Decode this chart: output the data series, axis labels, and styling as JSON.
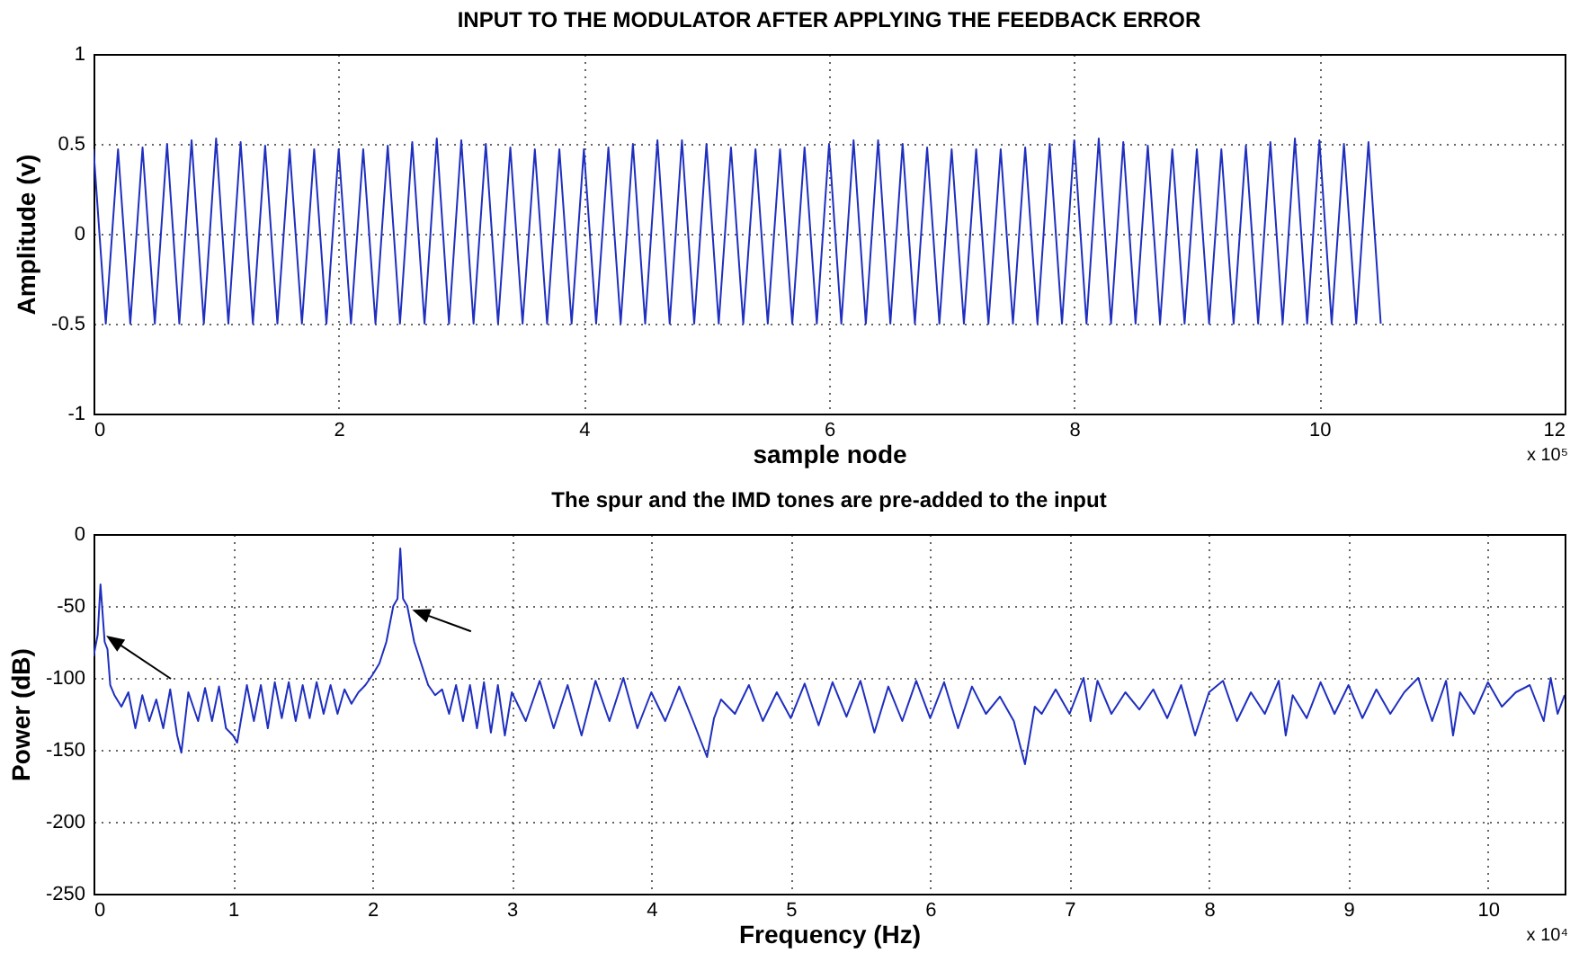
{
  "chart_data": [
    {
      "type": "line",
      "title": "INPUT TO THE MODULATOR AFTER APPLYING THE FEEDBACK ERROR",
      "xlabel": "sample node",
      "ylabel": "Amplitude (v)",
      "xlim": [
        0,
        12
      ],
      "ylim": [
        -1,
        1
      ],
      "xticks": [
        0,
        2,
        4,
        6,
        8,
        10,
        12
      ],
      "yticks": [
        -1,
        -0.5,
        0,
        0.5,
        1
      ],
      "grid": true,
      "annotations": [
        "x 10⁵"
      ],
      "series": [
        {
          "color": "#1f2fbf",
          "x": [
            0,
            0.1,
            0.2,
            0.3,
            0.4,
            0.5,
            0.6,
            0.7,
            0.8,
            0.9,
            1,
            1.1,
            1.2,
            1.3,
            1.4,
            1.5,
            1.6,
            1.7,
            1.8,
            1.9,
            2,
            2.1,
            2.2,
            2.3,
            2.4,
            2.5,
            2.6,
            2.7,
            2.8,
            2.9,
            3,
            3.1,
            3.2,
            3.3,
            3.4,
            3.5,
            3.6,
            3.7,
            3.8,
            3.9,
            4,
            4.1,
            4.2,
            4.3,
            4.4,
            4.5,
            4.6,
            4.7,
            4.8,
            4.9,
            5,
            5.1,
            5.2,
            5.3,
            5.4,
            5.5,
            5.6,
            5.7,
            5.8,
            5.9,
            6,
            6.1,
            6.2,
            6.3,
            6.4,
            6.5,
            6.6,
            6.7,
            6.8,
            6.9,
            7,
            7.1,
            7.2,
            7.3,
            7.4,
            7.5,
            7.6,
            7.7,
            7.8,
            7.9,
            8,
            8.1,
            8.2,
            8.3,
            8.4,
            8.5,
            8.6,
            8.7,
            8.8,
            8.9,
            9,
            9.1,
            9.2,
            9.3,
            9.4,
            9.5,
            9.6,
            9.7,
            9.8,
            9.9,
            10,
            10.1,
            10.2,
            10.3,
            10.4,
            10.5
          ],
          "values": [
            0.47,
            -0.5,
            0.47,
            -0.5,
            0.48,
            -0.5,
            0.5,
            -0.5,
            0.52,
            -0.5,
            0.53,
            -0.5,
            0.51,
            -0.5,
            0.49,
            -0.5,
            0.47,
            -0.5,
            0.47,
            -0.5,
            0.47,
            -0.5,
            0.47,
            -0.5,
            0.49,
            -0.5,
            0.51,
            -0.5,
            0.53,
            -0.5,
            0.52,
            -0.5,
            0.5,
            -0.5,
            0.48,
            -0.5,
            0.47,
            -0.5,
            0.47,
            -0.5,
            0.47,
            -0.5,
            0.48,
            -0.5,
            0.5,
            -0.5,
            0.52,
            -0.5,
            0.52,
            -0.5,
            0.5,
            -0.5,
            0.48,
            -0.5,
            0.47,
            -0.5,
            0.47,
            -0.5,
            0.48,
            -0.5,
            0.5,
            -0.5,
            0.52,
            -0.5,
            0.52,
            -0.5,
            0.5,
            -0.5,
            0.48,
            -0.5,
            0.47,
            -0.5,
            0.47,
            -0.5,
            0.47,
            -0.5,
            0.48,
            -0.5,
            0.5,
            -0.5,
            0.52,
            -0.5,
            0.53,
            -0.5,
            0.51,
            -0.5,
            0.49,
            -0.5,
            0.47,
            -0.5,
            0.47,
            -0.5,
            0.47,
            -0.5,
            0.49,
            -0.5,
            0.51,
            -0.5,
            0.53,
            -0.5,
            0.52,
            -0.5,
            0.5,
            -0.5,
            0.51,
            -0.5
          ]
        }
      ]
    },
    {
      "type": "line",
      "title": "The spur and the IMD tones are pre-added to the input",
      "xlabel": "Frequency (Hz)",
      "ylabel": "Power (dB)",
      "xlim": [
        0,
        10.55
      ],
      "ylim": [
        -250,
        0
      ],
      "xticks": [
        0,
        1,
        2,
        3,
        4,
        5,
        6,
        7,
        8,
        9,
        10
      ],
      "yticks": [
        -250,
        -200,
        -150,
        -100,
        -50,
        0
      ],
      "grid": true,
      "annotations": [
        "x 10⁴"
      ],
      "series": [
        {
          "color": "#1f2fbf",
          "x": [
            0,
            0.03,
            0.05,
            0.08,
            0.1,
            0.12,
            0.15,
            0.2,
            0.25,
            0.3,
            0.35,
            0.4,
            0.45,
            0.5,
            0.55,
            0.6,
            0.63,
            0.68,
            0.75,
            0.8,
            0.85,
            0.9,
            0.95,
            1,
            1.03,
            1.1,
            1.15,
            1.2,
            1.25,
            1.3,
            1.35,
            1.4,
            1.45,
            1.5,
            1.55,
            1.6,
            1.65,
            1.7,
            1.75,
            1.8,
            1.85,
            1.9,
            1.95,
            2,
            2.05,
            2.1,
            2.15,
            2.18,
            2.2,
            2.22,
            2.25,
            2.3,
            2.35,
            2.4,
            2.45,
            2.5,
            2.55,
            2.6,
            2.65,
            2.7,
            2.75,
            2.8,
            2.85,
            2.9,
            2.95,
            3,
            3.1,
            3.2,
            3.3,
            3.4,
            3.5,
            3.6,
            3.7,
            3.8,
            3.9,
            4,
            4.1,
            4.2,
            4.3,
            4.4,
            4.45,
            4.5,
            4.6,
            4.7,
            4.8,
            4.9,
            5,
            5.1,
            5.2,
            5.3,
            5.4,
            5.5,
            5.6,
            5.7,
            5.8,
            5.9,
            6,
            6.1,
            6.2,
            6.3,
            6.4,
            6.5,
            6.6,
            6.68,
            6.75,
            6.8,
            6.9,
            7,
            7.1,
            7.15,
            7.2,
            7.3,
            7.4,
            7.5,
            7.6,
            7.7,
            7.8,
            7.9,
            8,
            8.1,
            8.2,
            8.3,
            8.4,
            8.5,
            8.55,
            8.6,
            8.7,
            8.8,
            8.9,
            9,
            9.1,
            9.2,
            9.3,
            9.4,
            9.5,
            9.6,
            9.7,
            9.75,
            9.8,
            9.9,
            10,
            10.1,
            10.2,
            10.3,
            10.4,
            10.45,
            10.5,
            10.55
          ],
          "values": [
            -85,
            -70,
            -35,
            -75,
            -80,
            -105,
            -112,
            -120,
            -110,
            -135,
            -112,
            -130,
            -115,
            -135,
            -108,
            -140,
            -152,
            -110,
            -130,
            -107,
            -130,
            -106,
            -135,
            -140,
            -145,
            -105,
            -130,
            -105,
            -135,
            -103,
            -128,
            -103,
            -130,
            -105,
            -128,
            -103,
            -125,
            -105,
            -125,
            -108,
            -118,
            -110,
            -105,
            -98,
            -90,
            -75,
            -50,
            -45,
            -10,
            -45,
            -50,
            -75,
            -90,
            -105,
            -112,
            -108,
            -125,
            -105,
            -130,
            -105,
            -135,
            -103,
            -138,
            -105,
            -140,
            -110,
            -130,
            -102,
            -135,
            -105,
            -140,
            -102,
            -130,
            -100,
            -135,
            -110,
            -130,
            -106,
            -130,
            -155,
            -128,
            -115,
            -125,
            -105,
            -130,
            -110,
            -128,
            -104,
            -133,
            -103,
            -127,
            -102,
            -138,
            -106,
            -130,
            -102,
            -128,
            -103,
            -135,
            -106,
            -125,
            -113,
            -130,
            -160,
            -120,
            -125,
            -108,
            -125,
            -100,
            -130,
            -102,
            -125,
            -110,
            -122,
            -108,
            -128,
            -105,
            -140,
            -110,
            -102,
            -130,
            -110,
            -125,
            -102,
            -140,
            -112,
            -128,
            -103,
            -125,
            -105,
            -128,
            -108,
            -125,
            -110,
            -100,
            -130,
            -102,
            -140,
            -110,
            -125,
            -103,
            -120,
            -110,
            -105,
            -130,
            -100,
            -125,
            -112
          ]
        }
      ]
    }
  ]
}
